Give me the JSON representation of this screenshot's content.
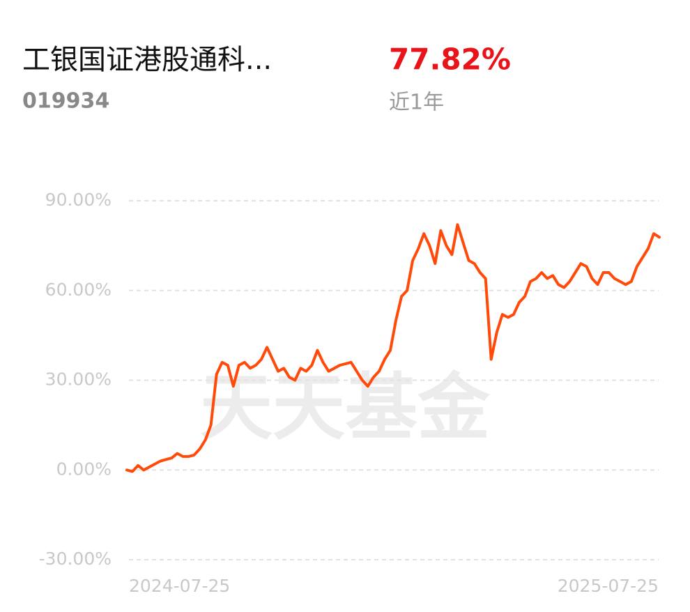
{
  "header": {
    "fund_name": "工银国证港股通科...",
    "fund_code": "019934",
    "return": {
      "value": 77.82,
      "label": "77.82%"
    },
    "period": "近1年"
  },
  "chart_data": {
    "type": "line",
    "watermark": "天天基金",
    "categories": [
      "2024-07-25",
      null,
      null,
      null,
      null,
      null,
      null,
      null,
      null,
      null,
      null,
      null,
      null,
      null,
      null,
      null,
      null,
      null,
      null,
      null,
      null,
      null,
      null,
      null,
      null,
      null,
      null,
      null,
      null,
      null,
      null,
      null,
      null,
      null,
      null,
      null,
      null,
      null,
      null,
      null,
      null,
      null,
      null,
      null,
      null,
      null,
      null,
      null,
      null,
      null,
      null,
      null,
      null,
      null,
      null,
      null,
      null,
      null,
      null,
      null,
      null,
      null,
      null,
      null,
      null,
      null,
      null,
      null,
      null,
      null,
      null,
      null,
      null,
      null,
      null,
      null,
      null,
      null,
      null,
      null,
      null,
      null,
      null,
      null,
      null,
      null,
      null,
      null,
      null,
      null,
      null,
      null,
      null,
      null,
      null,
      "2025-07-25"
    ],
    "series": [
      {
        "color": "#ff4a0a",
        "values": [
          0,
          -0.5,
          1.5,
          0,
          1,
          2,
          3,
          3.5,
          4,
          5.5,
          4.5,
          4.5,
          5,
          7,
          10,
          15,
          32,
          36,
          35,
          28,
          35,
          36,
          34,
          35,
          37,
          41,
          37,
          33,
          34,
          31,
          30,
          34,
          33,
          35,
          40,
          36,
          33,
          34,
          35,
          35.5,
          36,
          33,
          30,
          28,
          31,
          33,
          37,
          40,
          50,
          58,
          60,
          70,
          74,
          79,
          75,
          69,
          80,
          75,
          72,
          82,
          76,
          70,
          69,
          66,
          64,
          37,
          46,
          52,
          51,
          52,
          56,
          58,
          63,
          64,
          66,
          64,
          65,
          62,
          61,
          63,
          66,
          69,
          68,
          64,
          62,
          66,
          66,
          64,
          63,
          62,
          63,
          68,
          71,
          74,
          79,
          77.82
        ]
      }
    ],
    "ylim": [
      -30,
      90
    ],
    "yticks": [
      {
        "value": -30,
        "label": "-30.00%"
      },
      {
        "value": 0,
        "label": "0.00%"
      },
      {
        "value": 30,
        "label": "30.00%"
      },
      {
        "value": 60,
        "label": "60.00%"
      },
      {
        "value": 90,
        "label": "90.00%"
      }
    ],
    "grid": true
  }
}
